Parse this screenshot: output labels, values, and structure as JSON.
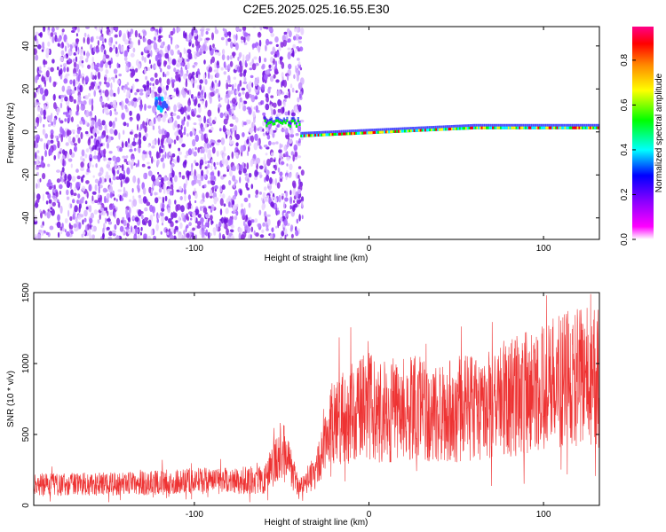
{
  "page_title": "C2E5.2025.025.16.55.E30",
  "chart_data": [
    {
      "type": "heatmap",
      "xlabel": "Height of straight line (km)",
      "ylabel": "Frequency (Hz)",
      "xlim": [
        -192,
        132
      ],
      "ylim": [
        -50,
        49
      ],
      "xticks": [
        -100,
        0,
        100
      ],
      "yticks": [
        -40,
        -20,
        0,
        20,
        40
      ],
      "colorbar": {
        "label": "Normalized spectral amplitude",
        "ticks": [
          0.0,
          0.2,
          0.4,
          0.6,
          0.8
        ],
        "range": [
          0.0,
          0.95
        ],
        "palette": [
          "#ffffff",
          "#ff00ff",
          "#8800ff",
          "#0000ff",
          "#00ffff",
          "#00ff00",
          "#ffff00",
          "#ff8800",
          "#ff0000",
          "#ff0088"
        ]
      },
      "features": [
        {
          "label": "broadband noise",
          "x_range": [
            -192,
            -38
          ],
          "freq_range": [
            -50,
            49
          ],
          "amplitude": 0.2
        },
        {
          "label": "carrier",
          "x_range": [
            -60,
            132
          ],
          "freq_start": -3,
          "freq_end": 1.5,
          "amplitude": 0.8
        }
      ]
    },
    {
      "type": "line",
      "xlabel": "Height of straight line (km)",
      "ylabel": "SNR (10 * v/v)",
      "xlim": [
        -192,
        132
      ],
      "ylim": [
        0,
        1500
      ],
      "xticks": [
        -100,
        0,
        100
      ],
      "yticks": [
        0,
        500,
        1000,
        1500
      ],
      "color": "#ee3333",
      "trend": {
        "x": [
          -192,
          -150,
          -100,
          -60,
          -50,
          -46,
          -40,
          -30,
          -20,
          -10,
          0,
          10,
          20,
          40,
          60,
          80,
          100,
          120,
          132
        ],
        "y": [
          150,
          150,
          170,
          180,
          400,
          300,
          120,
          250,
          600,
          650,
          700,
          650,
          700,
          650,
          700,
          750,
          850,
          900,
          900
        ]
      }
    }
  ]
}
